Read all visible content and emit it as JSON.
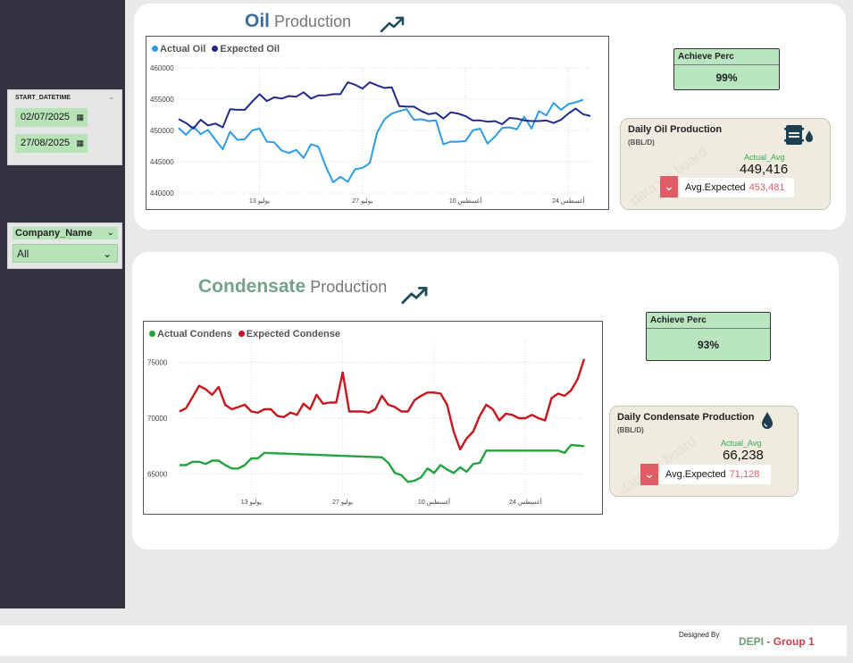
{
  "filters": {
    "date_slicer": {
      "title": "START_DATETIME",
      "start": "02/07/2025",
      "end": "27/08/2025"
    },
    "company_slicer": {
      "title": "Company_Name",
      "value": "All"
    }
  },
  "oil": {
    "title_bold": "Oil",
    "title_rest": "Production",
    "legend": [
      {
        "label": "Actual Oil",
        "color": "#2e9be6"
      },
      {
        "label": "Expected Oil",
        "color": "#1f2a8c"
      }
    ],
    "achieve": {
      "label": "Achieve Perc",
      "value": "99%"
    },
    "card": {
      "title": "Daily Oil Production",
      "unit": "(BBL/D)",
      "actual_label": "Actual_Avg",
      "actual_value": "449,416",
      "expected_label": "Avg.Expected",
      "expected_value": "453,481"
    },
    "icons": {
      "trend": "trend-up-icon",
      "main": "oil-barrel-icon",
      "arrow": "chevron-down-icon"
    }
  },
  "condensate": {
    "title_bold": "Condensate",
    "title_rest": "Production",
    "legend": [
      {
        "label": "Actual  Condens",
        "color": "#22a33e"
      },
      {
        "label": "Expected Condense",
        "color": "#c8161d"
      }
    ],
    "achieve": {
      "label": "Achieve Perc",
      "value": "93%"
    },
    "card": {
      "title": "Daily Condensate Production",
      "unit": "(BBL/D)",
      "actual_label": "Actual_Avg",
      "actual_value": "66,238",
      "expected_label": "Avg.Expected",
      "expected_value": "71,128"
    },
    "icons": {
      "trend": "trend-up-icon",
      "main": "droplet-icon",
      "arrow": "chevron-down-icon"
    }
  },
  "footer": {
    "designed_by": "Designed By",
    "brand_a": "DEPI",
    "brand_sep": " - ",
    "brand_b": "Group 1"
  },
  "chart_data": [
    {
      "type": "line",
      "x_tick_labels": [
        "يوليو 13",
        "يوليو 27",
        "أغسطس 10",
        "أغسطس 24"
      ],
      "x_ticks_day": [
        11,
        25,
        39,
        53
      ],
      "ylim": [
        440000,
        460000
      ],
      "y_ticks": [
        440000,
        445000,
        450000,
        455000,
        460000
      ],
      "y_tick_labels": [
        "440000",
        "445000",
        "450000",
        "455000",
        "460000"
      ],
      "grid": true,
      "legend_position": "top-left",
      "series": [
        {
          "name": "Actual Oil",
          "color": "#2e9be6",
          "values": [
            450400,
            449300,
            450600,
            449400,
            450100,
            448500,
            447000,
            449800,
            448500,
            448600,
            450000,
            450300,
            448200,
            448100,
            446800,
            446400,
            446900,
            445600,
            447800,
            447400,
            444300,
            441700,
            442600,
            441800,
            443800,
            444000,
            444800,
            449700,
            451800,
            452700,
            453100,
            453400,
            451700,
            451800,
            451500,
            451600,
            447800,
            448200,
            448200,
            448300,
            450000,
            450300,
            447900,
            449000,
            450400,
            450500,
            450200,
            452200,
            450300,
            453100,
            452400,
            454400,
            453300,
            454200,
            454500,
            454900
          ]
        },
        {
          "name": "Expected Oil",
          "color": "#1f2a8c",
          "values": [
            451800,
            451200,
            450300,
            451700,
            450800,
            451100,
            450500,
            453400,
            453300,
            453300,
            454600,
            455800,
            454700,
            455300,
            455100,
            455500,
            455400,
            456100,
            455100,
            455600,
            455600,
            455800,
            455800,
            457700,
            457300,
            456700,
            457700,
            457200,
            456800,
            456900,
            453900,
            453800,
            453800,
            453100,
            452600,
            452800,
            451900,
            452900,
            452700,
            452300,
            451600,
            451600,
            451400,
            451500,
            451000,
            452000,
            451900,
            451600,
            451500,
            451500,
            451600,
            451200,
            451700,
            452700,
            453500,
            452600,
            452300
          ]
        }
      ]
    },
    {
      "type": "line",
      "x_tick_labels": [
        "يوليو 13",
        "يوليو 27",
        "أغسطس 10",
        "أغسطس 24"
      ],
      "x_ticks_day": [
        11,
        25,
        39,
        53
      ],
      "ylim": [
        63200,
        76800
      ],
      "y_ticks": [
        65000,
        70000,
        75000
      ],
      "y_tick_labels": [
        "65000",
        "70000",
        "75000"
      ],
      "grid": true,
      "legend_position": "top-left",
      "series": [
        {
          "name": "Actual  Condens",
          "color": "#22a33e",
          "values": [
            [
              0,
              65800
            ],
            [
              1,
              65800
            ],
            [
              2,
              66100
            ],
            [
              3,
              66100
            ],
            [
              4,
              65900
            ],
            [
              5,
              66200
            ],
            [
              6,
              66200
            ],
            [
              7,
              65800
            ],
            [
              8,
              65500
            ],
            [
              9,
              65500
            ],
            [
              10,
              65800
            ],
            [
              11,
              66400
            ],
            [
              12,
              66400
            ],
            [
              13,
              66900
            ],
            [
              31,
              66500
            ],
            [
              32,
              66000
            ],
            [
              33,
              65100
            ],
            [
              34,
              64900
            ],
            [
              35,
              64300
            ],
            [
              36,
              64400
            ],
            [
              37,
              64700
            ],
            [
              38,
              65500
            ],
            [
              39,
              65100
            ],
            [
              40,
              65800
            ],
            [
              41,
              65400
            ],
            [
              42,
              65100
            ],
            [
              43,
              65600
            ],
            [
              44,
              65200
            ],
            [
              45,
              65900
            ],
            [
              46,
              66000
            ],
            [
              47,
              67100
            ],
            [
              58,
              67100
            ],
            [
              59,
              66900
            ],
            [
              60,
              67600
            ],
            [
              62,
              67500
            ]
          ]
        },
        {
          "name": "Expected Condense",
          "color": "#c8161d",
          "values": [
            70600,
            70900,
            71900,
            72900,
            72600,
            72100,
            72800,
            71200,
            70800,
            71000,
            71200,
            70600,
            70500,
            70800,
            70800,
            70200,
            70100,
            70500,
            70300,
            71300,
            70800,
            72100,
            71300,
            71400,
            71400,
            74100,
            70600,
            70600,
            70600,
            70500,
            70800,
            72000,
            71200,
            71000,
            70600,
            70600,
            71600,
            72000,
            72300,
            72300,
            72200,
            71200,
            68800,
            67200,
            68200,
            68800,
            70200,
            71200,
            70800,
            69800,
            70400,
            70300,
            70000,
            70000,
            70300,
            70000,
            69800,
            71800,
            72200,
            72000,
            72500,
            73500,
            75300
          ]
        }
      ]
    }
  ]
}
